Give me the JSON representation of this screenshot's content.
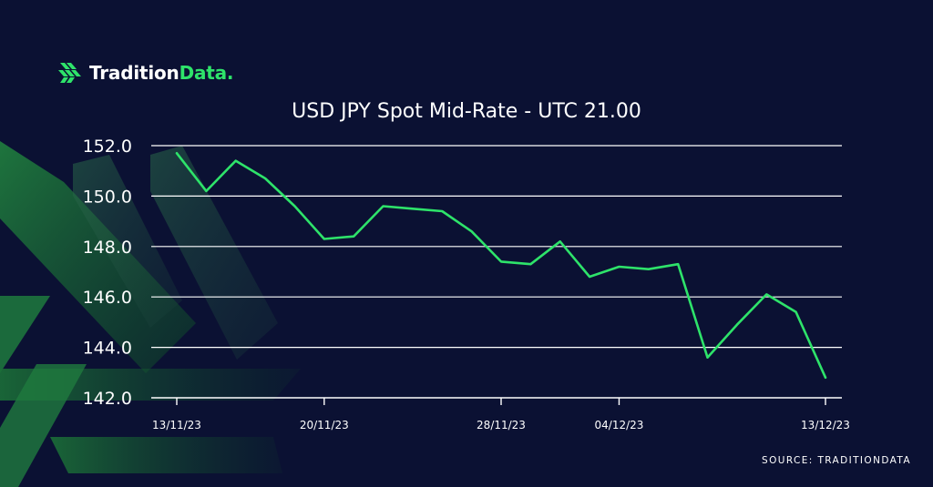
{
  "brand": {
    "name_main": "Tradition",
    "name_accent": "Data.",
    "accent_color": "#2ee36a",
    "icon": "tradition-logo-icon"
  },
  "source_text": "SOURCE: TRADITIONDATA",
  "colors": {
    "background": "#0b1133",
    "line": "#2ee36a",
    "grid": "#ffffff",
    "text": "#ffffff"
  },
  "chart_data": {
    "type": "line",
    "title": "USD JPY Spot Mid-Rate - UTC 21.00",
    "xlabel": "",
    "ylabel": "",
    "ylim": [
      142.0,
      152.0
    ],
    "yticks": [
      "152.0",
      "150.0",
      "148.0",
      "146.0",
      "144.0",
      "142.0"
    ],
    "xticks": [
      "13/11/23",
      "20/11/23",
      "28/11/23",
      "04/12/23",
      "13/12/23"
    ],
    "grid": "horizontal",
    "legend": "none",
    "series": [
      {
        "x": [
          "13/11/23",
          "14/11/23",
          "15/11/23",
          "16/11/23",
          "17/11/23",
          "20/11/23",
          "21/11/23",
          "22/11/23",
          "23/11/23",
          "24/11/23",
          "27/11/23",
          "28/11/23",
          "29/11/23",
          "30/11/23",
          "01/12/23",
          "04/12/23",
          "05/12/23",
          "06/12/23",
          "07/12/23",
          "08/12/23",
          "11/12/23",
          "12/12/23",
          "13/12/23"
        ],
        "values": [
          151.7,
          150.2,
          151.4,
          150.7,
          149.6,
          148.3,
          148.4,
          149.6,
          149.5,
          149.4,
          148.6,
          147.4,
          147.3,
          148.2,
          146.8,
          147.2,
          147.1,
          147.3,
          143.6,
          144.9,
          146.1,
          145.4,
          142.8
        ]
      }
    ]
  }
}
